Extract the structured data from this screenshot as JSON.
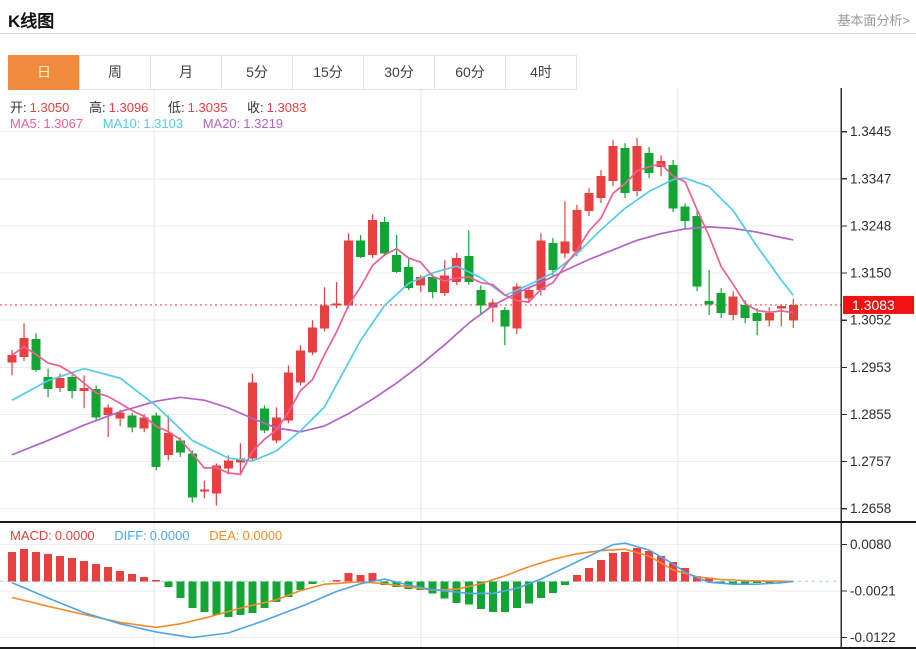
{
  "header": {
    "title": "K线图",
    "link": "基本面分析>"
  },
  "tabs": [
    {
      "label": "日",
      "name": "tab-day",
      "selected": true
    },
    {
      "label": "周",
      "name": "tab-week",
      "selected": false
    },
    {
      "label": "月",
      "name": "tab-month",
      "selected": false
    },
    {
      "label": "5分",
      "name": "tab-5min",
      "selected": false
    },
    {
      "label": "15分",
      "name": "tab-15min",
      "selected": false
    },
    {
      "label": "30分",
      "name": "tab-30min",
      "selected": false
    },
    {
      "label": "60分",
      "name": "tab-60min",
      "selected": false
    },
    {
      "label": "4时",
      "name": "tab-4hour",
      "selected": false
    }
  ],
  "legend": {
    "open_label": "开:",
    "open": "1.3050",
    "high_label": "高:",
    "high": "1.3096",
    "low_label": "低:",
    "low": "1.3035",
    "close_label": "收:",
    "close": "1.3083",
    "ma5_label": "MA5:",
    "ma5": "1.3067",
    "ma10_label": "MA10:",
    "ma10": "1.3103",
    "ma20_label": "MA20:",
    "ma20": "1.3219"
  },
  "macd_legend": {
    "macd_label": "MACD:",
    "macd": "0.0000",
    "diff_label": "DIFF:",
    "diff": "0.0000",
    "dea_label": "DEA:",
    "dea": "0.0000"
  },
  "price_tag": "1.3083",
  "colors": {
    "up": "#e64040",
    "down": "#14a434",
    "ma5": "#ef5f96",
    "ma10": "#54cbe8",
    "ma20": "#b264c8",
    "diff": "#4da6e8",
    "dea": "#f08c2e",
    "accent": "#f08a3c",
    "price_tag_bg": "#f21111",
    "dotted_line": "#f56c6c",
    "zero_dash": "#a9d9f3",
    "grid": "#ededed",
    "vgrid": "#e2eaf2",
    "axis": "#333333",
    "link_gray": "#999999"
  },
  "chart_data": {
    "type": "candlestick+macd",
    "title": "K线图",
    "main": {
      "type": "candlestick",
      "y_axis_ticks": [
        "1.3445",
        "1.3347",
        "1.3248",
        "1.3150",
        "1.3052",
        "1.2953",
        "1.2855",
        "1.2757",
        "1.2658"
      ],
      "y_range": [
        1.2658,
        1.3445
      ],
      "last_price": 1.3083,
      "candles_ohlc": [
        [
          1.2963,
          1.2989,
          1.2936,
          1.2978
        ],
        [
          1.2974,
          1.3045,
          1.2966,
          1.3014
        ],
        [
          1.3012,
          1.3024,
          1.2943,
          1.2947
        ],
        [
          1.2932,
          1.295,
          1.289,
          1.2907
        ],
        [
          1.2909,
          1.294,
          1.2901,
          1.293
        ],
        [
          1.2932,
          1.2937,
          1.2888,
          1.2903
        ],
        [
          1.2903,
          1.2936,
          1.2867,
          1.2909
        ],
        [
          1.2907,
          1.2915,
          1.2842,
          1.2848
        ],
        [
          1.2853,
          1.2875,
          1.2807,
          1.2869
        ],
        [
          1.2846,
          1.2864,
          1.283,
          1.2858
        ],
        [
          1.2852,
          1.2858,
          1.2817,
          1.2827
        ],
        [
          1.2825,
          1.2855,
          1.2817,
          1.2848
        ],
        [
          1.2852,
          1.2858,
          1.2737,
          1.2744
        ],
        [
          1.277,
          1.2852,
          1.2758,
          1.2815
        ],
        [
          1.28,
          1.2806,
          1.2765,
          1.2775
        ],
        [
          1.2773,
          1.2779,
          1.267,
          1.2681
        ],
        [
          1.2693,
          1.2716,
          1.2679,
          1.2697
        ],
        [
          1.2689,
          1.2752,
          1.2664,
          1.2748
        ],
        [
          1.2741,
          1.2769,
          1.2729,
          1.2758
        ],
        [
          1.2754,
          1.2794,
          1.2727,
          1.2762
        ],
        [
          1.2762,
          1.294,
          1.2756,
          1.2921
        ],
        [
          1.2867,
          1.2873,
          1.2815,
          1.2821
        ],
        [
          1.28,
          1.2869,
          1.2794,
          1.2848
        ],
        [
          1.2842,
          1.2957,
          1.2836,
          1.2942
        ],
        [
          1.2921,
          1.2999,
          1.2915,
          1.2988
        ],
        [
          1.2984,
          1.3051,
          1.2978,
          1.3036
        ],
        [
          1.3034,
          1.312,
          1.3028,
          1.3082
        ],
        [
          1.3082,
          1.3131,
          1.3076,
          1.3086
        ],
        [
          1.3082,
          1.3233,
          1.3076,
          1.3218
        ],
        [
          1.3218,
          1.3229,
          1.3181,
          1.3183
        ],
        [
          1.3187,
          1.3273,
          1.3181,
          1.326
        ],
        [
          1.3256,
          1.3267,
          1.3185,
          1.3191
        ],
        [
          1.3187,
          1.3229,
          1.315,
          1.3152
        ],
        [
          1.3162,
          1.3181,
          1.3114,
          1.3118
        ],
        [
          1.3124,
          1.3145,
          1.311,
          1.3141
        ],
        [
          1.3141,
          1.3147,
          1.3097,
          1.311
        ],
        [
          1.3108,
          1.3177,
          1.3102,
          1.3145
        ],
        [
          1.3131,
          1.3192,
          1.3125,
          1.3181
        ],
        [
          1.3185,
          1.3239,
          1.3125,
          1.3131
        ],
        [
          1.3114,
          1.3124,
          1.3062,
          1.3082
        ],
        [
          1.3078,
          1.3095,
          1.3047,
          1.3088
        ],
        [
          1.3072,
          1.3078,
          1.2999,
          1.3038
        ],
        [
          1.3034,
          1.3128,
          1.3022,
          1.3122
        ],
        [
          1.3097,
          1.312,
          1.309,
          1.3114
        ],
        [
          1.3114,
          1.3233,
          1.3103,
          1.3218
        ],
        [
          1.3212,
          1.3223,
          1.3145,
          1.3156
        ],
        [
          1.3191,
          1.33,
          1.3181,
          1.3216
        ],
        [
          1.3195,
          1.3292,
          1.3185,
          1.3281
        ],
        [
          1.3279,
          1.3327,
          1.3269,
          1.3317
        ],
        [
          1.3306,
          1.3365,
          1.3296,
          1.3352
        ],
        [
          1.3342,
          1.3428,
          1.3331,
          1.3415
        ],
        [
          1.3411,
          1.3421,
          1.3306,
          1.3317
        ],
        [
          1.3321,
          1.3432,
          1.331,
          1.3415
        ],
        [
          1.34,
          1.3413,
          1.3348,
          1.3359
        ],
        [
          1.3371,
          1.3396,
          1.3352,
          1.3384
        ],
        [
          1.3375,
          1.3386,
          1.3277,
          1.3285
        ],
        [
          1.3289,
          1.3295,
          1.3243,
          1.3258
        ],
        [
          1.3269,
          1.3281,
          1.3112,
          1.3122
        ],
        [
          1.3091,
          1.3156,
          1.3062,
          1.3084
        ],
        [
          1.3108,
          1.3118,
          1.3056,
          1.3066
        ],
        [
          1.3062,
          1.3112,
          1.3051,
          1.3101
        ],
        [
          1.3083,
          1.3093,
          1.3045,
          1.3056
        ],
        [
          1.3066,
          1.3076,
          1.302,
          1.3049
        ],
        [
          1.3051,
          1.3078,
          1.3038,
          1.3066
        ],
        [
          1.3076,
          1.3082,
          1.3038,
          1.3081
        ],
        [
          1.305,
          1.3096,
          1.3035,
          1.3083
        ]
      ],
      "ma5_period": 5,
      "ma10_anchors": [
        [
          0,
          1.2884
        ],
        [
          3,
          1.2925
        ],
        [
          6,
          1.295
        ],
        [
          9,
          1.293
        ],
        [
          12,
          1.2872
        ],
        [
          15,
          1.28
        ],
        [
          18,
          1.2763
        ],
        [
          20,
          1.2757
        ],
        [
          22,
          1.2778
        ],
        [
          24,
          1.282
        ],
        [
          26,
          1.287
        ],
        [
          29,
          1.3009
        ],
        [
          31,
          1.3082
        ],
        [
          33,
          1.3128
        ],
        [
          35,
          1.315
        ],
        [
          37,
          1.3164
        ],
        [
          39,
          1.314
        ],
        [
          41,
          1.3103
        ],
        [
          43,
          1.3125
        ],
        [
          45,
          1.315
        ],
        [
          47,
          1.319
        ],
        [
          49,
          1.324
        ],
        [
          51,
          1.3285
        ],
        [
          53,
          1.332
        ],
        [
          55,
          1.3345
        ],
        [
          56,
          1.3348
        ],
        [
          58,
          1.333
        ],
        [
          60,
          1.328
        ],
        [
          62,
          1.3205
        ],
        [
          64,
          1.3135
        ],
        [
          65,
          1.3103
        ]
      ],
      "ma20_anchors": [
        [
          0,
          1.277
        ],
        [
          3,
          1.28
        ],
        [
          6,
          1.2832
        ],
        [
          9,
          1.286
        ],
        [
          12,
          1.2882
        ],
        [
          14,
          1.289
        ],
        [
          16,
          1.2884
        ],
        [
          18,
          1.2868
        ],
        [
          20,
          1.2846
        ],
        [
          22,
          1.2826
        ],
        [
          24,
          1.2818
        ],
        [
          26,
          1.283
        ],
        [
          28,
          1.2856
        ],
        [
          30,
          1.2886
        ],
        [
          32,
          1.292
        ],
        [
          34,
          1.2958
        ],
        [
          36,
          1.3
        ],
        [
          38,
          1.3045
        ],
        [
          40,
          1.3082
        ],
        [
          42,
          1.3108
        ],
        [
          44,
          1.313
        ],
        [
          46,
          1.3155
        ],
        [
          48,
          1.3178
        ],
        [
          50,
          1.3198
        ],
        [
          52,
          1.3218
        ],
        [
          54,
          1.3232
        ],
        [
          56,
          1.3242
        ],
        [
          58,
          1.3246
        ],
        [
          60,
          1.3243
        ],
        [
          62,
          1.3235
        ],
        [
          64,
          1.3224
        ],
        [
          65,
          1.3219
        ]
      ]
    },
    "macd": {
      "type": "bar",
      "y_axis_ticks": [
        "0.0080",
        "-0.0021",
        "-0.0122"
      ],
      "y_range": [
        -0.0122,
        0.008
      ],
      "bars": [
        0.0064,
        0.007,
        0.0064,
        0.006,
        0.0055,
        0.0051,
        0.0044,
        0.0038,
        0.0031,
        0.0023,
        0.0016,
        0.001,
        0.0003,
        -0.0012,
        -0.0036,
        -0.0058,
        -0.0066,
        -0.0073,
        -0.0077,
        -0.0073,
        -0.0069,
        -0.0058,
        -0.0045,
        -0.0034,
        -0.0019,
        -0.0006,
        0.0,
        0.0003,
        0.0018,
        0.0014,
        0.0018,
        -0.0008,
        -0.0012,
        -0.0017,
        -0.0019,
        -0.0026,
        -0.0037,
        -0.0047,
        -0.005,
        -0.006,
        -0.0066,
        -0.0066,
        -0.0058,
        -0.0048,
        -0.0036,
        -0.0025,
        -0.0008,
        0.0014,
        0.0029,
        0.0047,
        0.0062,
        0.0064,
        0.0073,
        0.0066,
        0.0055,
        0.0042,
        0.0029,
        0.0012,
        0.0008,
        -0.0004,
        -0.0006,
        -0.0005,
        -0.0004,
        -0.0005,
        -0.0003,
        0.0
      ],
      "diff_anchors": [
        [
          0,
          -0.0003
        ],
        [
          3,
          -0.0036
        ],
        [
          6,
          -0.0068
        ],
        [
          9,
          -0.0092
        ],
        [
          12,
          -0.011
        ],
        [
          15,
          -0.0122
        ],
        [
          18,
          -0.0112
        ],
        [
          21,
          -0.0085
        ],
        [
          24,
          -0.0055
        ],
        [
          27,
          -0.0022
        ],
        [
          29,
          -0.0005
        ],
        [
          31,
          0.0005
        ],
        [
          33,
          -0.0008
        ],
        [
          35,
          -0.0018
        ],
        [
          38,
          -0.0026
        ],
        [
          40,
          -0.0026
        ],
        [
          42,
          -0.0015
        ],
        [
          44,
          0.0005
        ],
        [
          46,
          0.003
        ],
        [
          48,
          0.0055
        ],
        [
          50,
          0.008
        ],
        [
          51,
          0.0083
        ],
        [
          53,
          0.0068
        ],
        [
          55,
          0.0038
        ],
        [
          56,
          0.002
        ],
        [
          57,
          0.0008
        ],
        [
          58,
          -0.0002
        ],
        [
          60,
          -0.0006
        ],
        [
          62,
          -0.0006
        ],
        [
          64,
          -0.0003
        ],
        [
          65,
          0.0
        ]
      ],
      "dea_anchors": [
        [
          0,
          -0.0035
        ],
        [
          3,
          -0.0054
        ],
        [
          6,
          -0.0072
        ],
        [
          9,
          -0.0089
        ],
        [
          12,
          -0.01
        ],
        [
          14,
          -0.0092
        ],
        [
          16,
          -0.008
        ],
        [
          19,
          -0.0058
        ],
        [
          22,
          -0.004
        ],
        [
          24,
          -0.002
        ],
        [
          26,
          -0.0006
        ],
        [
          29,
          -0.0001
        ],
        [
          31,
          -0.0005
        ],
        [
          33,
          -0.0012
        ],
        [
          35,
          -0.0019
        ],
        [
          37,
          -0.0017
        ],
        [
          39,
          -0.0005
        ],
        [
          41,
          0.0012
        ],
        [
          43,
          0.0032
        ],
        [
          45,
          0.0048
        ],
        [
          47,
          0.006
        ],
        [
          49,
          0.0067
        ],
        [
          51,
          0.007
        ],
        [
          53,
          0.0055
        ],
        [
          55,
          0.0025
        ],
        [
          57,
          0.001
        ],
        [
          59,
          0.0004
        ],
        [
          62,
          0.0001
        ],
        [
          65,
          0.0
        ]
      ]
    }
  }
}
